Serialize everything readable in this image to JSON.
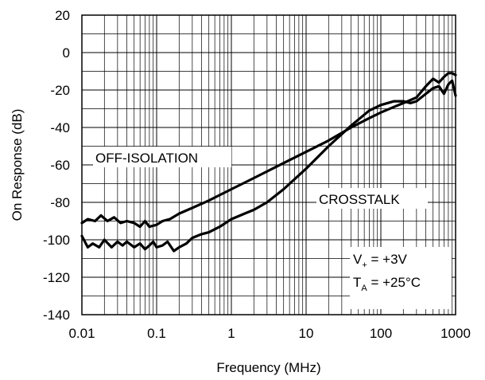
{
  "chart_data": {
    "type": "line",
    "title": "",
    "xlabel": "Frequency (MHz)",
    "ylabel": "On Response (dB)",
    "x_scale": "log",
    "xlim": [
      0.01,
      1000
    ],
    "ylim": [
      -140,
      20
    ],
    "grid": true,
    "x_tick_labels": [
      "0.01",
      "0.1",
      "1",
      "10",
      "100",
      "1000"
    ],
    "x_tick_values": [
      0.01,
      0.1,
      1,
      10,
      100,
      1000
    ],
    "y_tick_labels": [
      "20",
      "0",
      "-20",
      "-40",
      "-60",
      "-80",
      "-100",
      "-120",
      "-140"
    ],
    "y_tick_values": [
      20,
      0,
      -20,
      -40,
      -60,
      -80,
      -100,
      -120,
      -140
    ],
    "annotations": {
      "off_isolation": "OFF-ISOLATION",
      "crosstalk": "CROSSTALK",
      "supply_main": "V",
      "supply_sub": "+",
      "supply_rest": " = +3V",
      "temp_main": "T",
      "temp_sub": "A",
      "temp_rest": " = +25°C"
    },
    "series": [
      {
        "label": "OFF-ISOLATION",
        "x": [
          0.01,
          0.012,
          0.015,
          0.018,
          0.022,
          0.027,
          0.033,
          0.04,
          0.05,
          0.06,
          0.07,
          0.08,
          0.1,
          0.12,
          0.15,
          0.2,
          0.3,
          0.5,
          1,
          2,
          5,
          10,
          20,
          40,
          70,
          100,
          150,
          200,
          300,
          400,
          500,
          600,
          700,
          800,
          900,
          1000
        ],
        "y": [
          -91,
          -89,
          -90,
          -87,
          -90,
          -88,
          -91,
          -90,
          -91,
          -93,
          -90,
          -93,
          -92,
          -90,
          -89,
          -86,
          -83,
          -79,
          -73,
          -67,
          -59,
          -53,
          -47,
          -40,
          -35,
          -32,
          -29,
          -27,
          -24,
          -18,
          -14,
          -16,
          -13,
          -11,
          -11,
          -12
        ]
      },
      {
        "label": "CROSSTALK",
        "x": [
          0.01,
          0.012,
          0.014,
          0.017,
          0.02,
          0.025,
          0.03,
          0.035,
          0.04,
          0.05,
          0.06,
          0.07,
          0.08,
          0.09,
          0.1,
          0.12,
          0.14,
          0.17,
          0.2,
          0.25,
          0.3,
          0.4,
          0.5,
          0.7,
          1,
          1.5,
          2,
          3,
          5,
          10,
          20,
          40,
          70,
          100,
          150,
          200,
          250,
          300,
          400,
          500,
          600,
          700,
          800,
          900,
          1000
        ],
        "y": [
          -98,
          -104,
          -102,
          -104,
          -100,
          -104,
          -101,
          -103,
          -101,
          -104,
          -102,
          -105,
          -103,
          -101,
          -104,
          -103,
          -101,
          -106,
          -104,
          -102,
          -99,
          -97,
          -96,
          -93,
          -89,
          -86,
          -84,
          -80,
          -73,
          -62,
          -50,
          -39,
          -31,
          -28,
          -26,
          -26,
          -27,
          -26,
          -22,
          -19,
          -18,
          -22,
          -17,
          -15,
          -23
        ]
      }
    ]
  }
}
